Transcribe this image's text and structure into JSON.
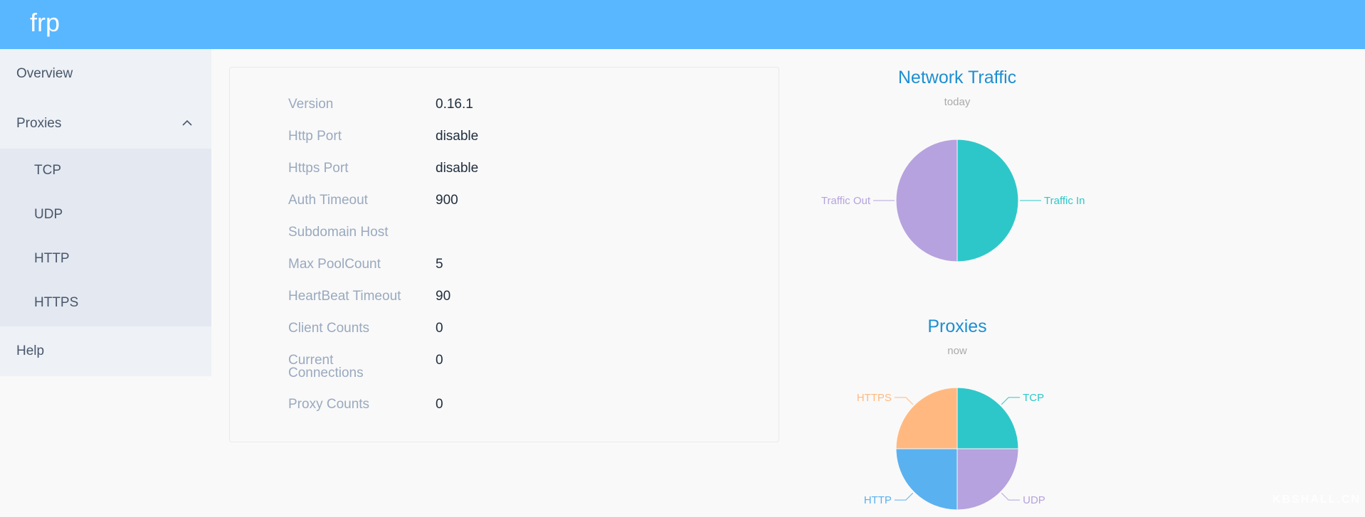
{
  "header": {
    "brand": "frp",
    "bg_color": "#58b7ff"
  },
  "sidebar": {
    "overview": "Overview",
    "proxies": "Proxies",
    "proxies_expanded": true,
    "proxy_items": [
      "TCP",
      "UDP",
      "HTTP",
      "HTTPS"
    ],
    "help": "Help"
  },
  "server_info": {
    "rows": [
      {
        "label": "Version",
        "value": "0.16.1"
      },
      {
        "label": "Http Port",
        "value": "disable"
      },
      {
        "label": "Https Port",
        "value": "disable"
      },
      {
        "label": "Auth Timeout",
        "value": "900"
      },
      {
        "label": "Subdomain Host",
        "value": ""
      },
      {
        "label": "Max PoolCount",
        "value": "5"
      },
      {
        "label": "HeartBeat Timeout",
        "value": "90"
      },
      {
        "label": "Client Counts",
        "value": "0"
      },
      {
        "label": "Current Connections",
        "value": "0"
      },
      {
        "label": "Proxy Counts",
        "value": "0"
      }
    ]
  },
  "chart_data": [
    {
      "type": "pie",
      "title": "Network Traffic",
      "subtitle": "today",
      "categories": [
        "Traffic In",
        "Traffic Out"
      ],
      "values": [
        50,
        50
      ],
      "colors": [
        "#2ec7c9",
        "#b6a2de"
      ]
    },
    {
      "type": "pie",
      "title": "Proxies",
      "subtitle": "now",
      "categories": [
        "TCP",
        "UDP",
        "HTTP",
        "HTTPS"
      ],
      "values": [
        25,
        25,
        25,
        25
      ],
      "colors": [
        "#2ec7c9",
        "#b6a2de",
        "#5ab1ef",
        "#ffb980"
      ]
    }
  ],
  "watermark": "KBSHALL.CN"
}
